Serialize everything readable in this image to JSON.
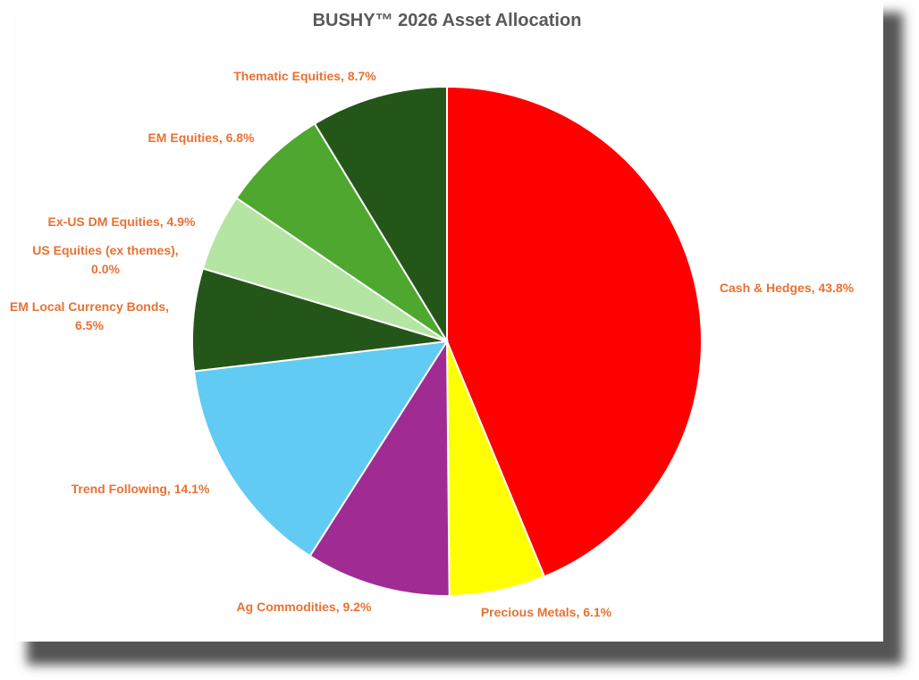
{
  "chart_data": {
    "type": "pie",
    "title": "BUSHY™ 2026 Asset Allocation",
    "values": [
      43.8,
      6.1,
      9.2,
      14.1,
      6.5,
      0.0,
      4.9,
      6.8,
      8.7
    ],
    "labels": [
      [
        "Cash & Hedges, 43.8%"
      ],
      [
        "Precious Metals, 6.1%"
      ],
      [
        "Ag Commodities, 9.2%"
      ],
      [
        "Trend Following, 14.1%"
      ],
      [
        "EM Local Currency Bonds,",
        "6.5%"
      ],
      [
        "US Equities (ex themes),",
        "0.0%"
      ],
      [
        "Ex-US DM Equities, 4.9%"
      ],
      [
        "EM Equities, 6.8%"
      ],
      [
        "Thematic Equities, 8.7%"
      ]
    ],
    "colors": [
      "#ff0000",
      "#ffff00",
      "#a02b93",
      "#61cbf3",
      "#255619",
      "#255619",
      "#b4e5a2",
      "#4ea72e",
      "#255619"
    ]
  }
}
